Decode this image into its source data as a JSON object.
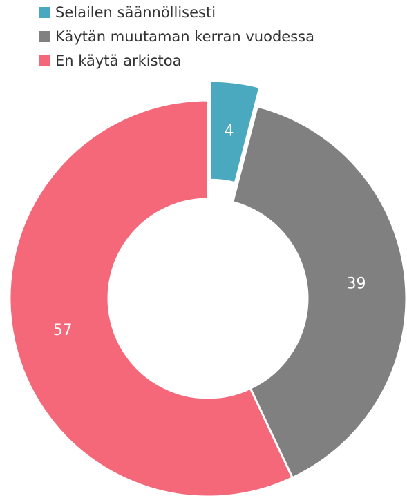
{
  "chart_data": {
    "type": "donut",
    "categories": [
      "Selailen säännöllisesti",
      "Käytän muutaman kerran vuodessa",
      "En käytä arkistoa"
    ],
    "values": [
      4,
      39,
      57
    ],
    "colors": [
      "#4aa8bf",
      "#808080",
      "#f4687a"
    ],
    "exploded_slice": 0,
    "legend": "top-left"
  }
}
